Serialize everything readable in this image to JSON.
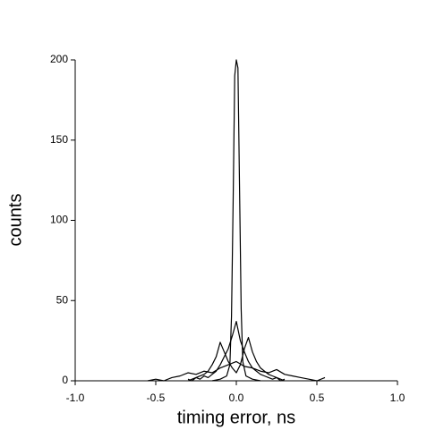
{
  "chart_data": {
    "type": "line",
    "xlabel": "timing error, ns",
    "ylabel": "counts",
    "xlim": [
      -1.0,
      1.0
    ],
    "xticks": [
      {
        "value": -1.0,
        "label": "-1.0"
      },
      {
        "value": -0.5,
        "label": "-0.5"
      },
      {
        "value": 0,
        "label": "0.0"
      },
      {
        "value": 0.5,
        "label": "0.5"
      },
      {
        "value": 1.0,
        "label": "1.0"
      }
    ],
    "ylim": [
      0,
      200
    ],
    "yticks": [
      0,
      50,
      100,
      150,
      200
    ],
    "series": [
      {
        "color": "#000000",
        "x": [
          -0.15,
          -0.1,
          -0.06,
          -0.04,
          -0.03,
          -0.02,
          -0.01,
          0,
          0.01,
          0.02,
          0.03,
          0.04,
          0.06,
          0.1,
          0.15
        ],
        "values": [
          0,
          1,
          3,
          10,
          40,
          110,
          190,
          200,
          195,
          120,
          45,
          12,
          3,
          1,
          0
        ]
      },
      {
        "color": "#000000",
        "x": [
          -0.3,
          -0.275,
          -0.25,
          -0.225,
          -0.2,
          -0.175,
          -0.15,
          -0.125,
          -0.1,
          -0.075,
          -0.05,
          -0.025,
          0,
          0.025,
          0.05,
          0.075,
          0.1,
          0.125,
          0.15,
          0.175,
          0.2,
          0.225,
          0.25,
          0.275,
          0.3
        ],
        "values": [
          1,
          0,
          2,
          1,
          3,
          2,
          4,
          6,
          10,
          15,
          20,
          28,
          37,
          25,
          18,
          12,
          8,
          6,
          4,
          3,
          2,
          1,
          2,
          0,
          1
        ]
      },
      {
        "color": "#000000",
        "x": [
          -0.3,
          -0.275,
          -0.25,
          -0.225,
          -0.2,
          -0.175,
          -0.15,
          -0.125,
          -0.1,
          -0.075,
          -0.05,
          -0.025,
          0,
          0.025,
          0.05,
          0.075,
          0.1,
          0.125,
          0.15,
          0.175,
          0.2,
          0.225,
          0.25,
          0.275,
          0.3
        ],
        "values": [
          0,
          1,
          2,
          3,
          4,
          6,
          10,
          15,
          24,
          18,
          12,
          8,
          5,
          10,
          20,
          27,
          18,
          12,
          8,
          6,
          4,
          3,
          2,
          1,
          0
        ]
      },
      {
        "color": "#000000",
        "x": [
          -0.55,
          -0.5,
          -0.45,
          -0.4,
          -0.35,
          -0.3,
          -0.25,
          -0.2,
          -0.15,
          -0.1,
          -0.05,
          0,
          0.05,
          0.1,
          0.15,
          0.2,
          0.25,
          0.3,
          0.35,
          0.4,
          0.45,
          0.5,
          0.55
        ],
        "values": [
          0,
          1,
          0,
          2,
          3,
          5,
          4,
          6,
          5,
          8,
          10,
          12,
          9,
          8,
          6,
          5,
          7,
          4,
          3,
          2,
          1,
          0,
          2
        ]
      }
    ]
  }
}
